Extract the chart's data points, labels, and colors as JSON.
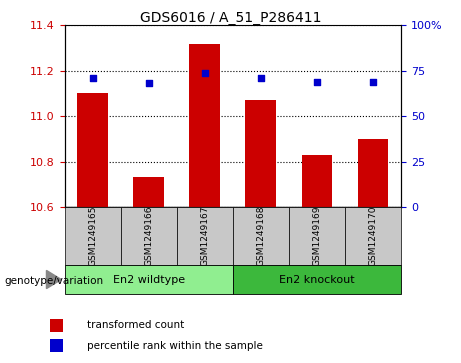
{
  "title": "GDS6016 / A_51_P286411",
  "samples": [
    "GSM1249165",
    "GSM1249166",
    "GSM1249167",
    "GSM1249168",
    "GSM1249169",
    "GSM1249170"
  ],
  "bar_values": [
    11.1,
    10.73,
    11.32,
    11.07,
    10.83,
    10.9
  ],
  "percentile_values": [
    71,
    68,
    74,
    71,
    69,
    69
  ],
  "ylim_left": [
    10.6,
    11.4
  ],
  "ylim_right": [
    0,
    100
  ],
  "yticks_left": [
    10.6,
    10.8,
    11.0,
    11.2,
    11.4
  ],
  "yticks_right": [
    0,
    25,
    50,
    75,
    100
  ],
  "bar_color": "#cc0000",
  "scatter_color": "#0000cc",
  "grid_color": "#000000",
  "group1_label": "En2 wildtype",
  "group2_label": "En2 knockout",
  "group1_indices": [
    0,
    1,
    2
  ],
  "group2_indices": [
    3,
    4,
    5
  ],
  "group1_color": "#90ee90",
  "group2_color": "#3cb83c",
  "sample_box_color": "#c8c8c8",
  "genotype_label": "genotype/variation",
  "legend1_label": "transformed count",
  "legend2_label": "percentile rank within the sample",
  "bar_bottom": 10.6,
  "tick_label_color_left": "#cc0000",
  "tick_label_color_right": "#0000cc",
  "bar_width": 0.55
}
